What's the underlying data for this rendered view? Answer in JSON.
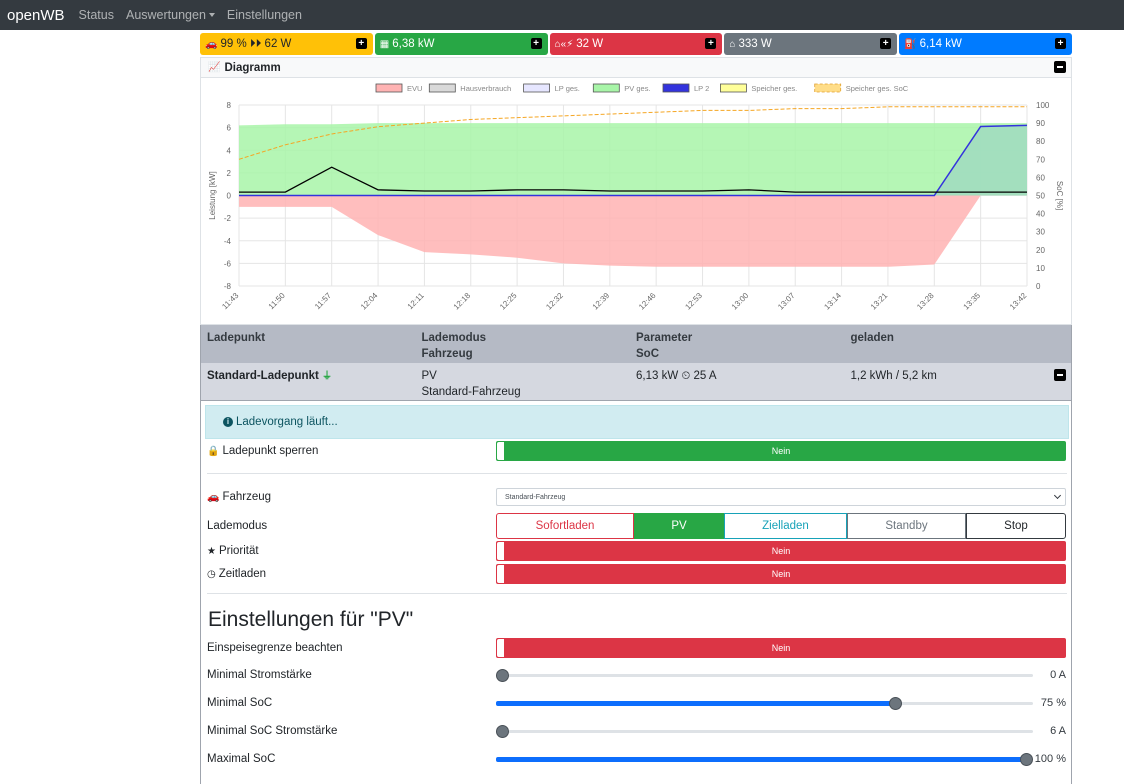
{
  "navbar": {
    "brand": "openWB",
    "links": [
      "Status",
      "Auswertungen",
      "Einstellungen"
    ]
  },
  "tiles": [
    {
      "icon": "car-icon",
      "text": "99 % ⏵⏵ 62 W"
    },
    {
      "icon": "solar-panel-icon",
      "text": "6,38 kW"
    },
    {
      "icon": "grid-icon",
      "text": "32 W"
    },
    {
      "icon": "house-icon",
      "text": "333 W"
    },
    {
      "icon": "charging-station-icon",
      "text": "6,14 kW"
    }
  ],
  "diagram": {
    "title": "Diagramm"
  },
  "chart_data": {
    "type": "area",
    "legend": [
      "EVU",
      "Hausverbrauch",
      "LP ges.",
      "PV ges.",
      "LP 2",
      "Speicher ges.",
      "Speicher ges. SoC"
    ],
    "legend_colors": [
      "#ffb3b3",
      "#d9d9d9",
      "#e6e6ff",
      "#a8f5a8",
      "#3333dd",
      "#ffff99",
      "#ffdd88"
    ],
    "legend_placement": "top",
    "ylabel": "Leistung [kW]",
    "ylabel_right": "SoC [%]",
    "ylim": [
      -8,
      8
    ],
    "yticks": [
      -8,
      -6,
      -4,
      -2,
      0,
      2,
      4,
      6,
      8
    ],
    "ylim_right": [
      0,
      100
    ],
    "yticks_right": [
      0,
      10,
      20,
      30,
      40,
      50,
      60,
      70,
      80,
      90,
      100
    ],
    "x_ticks": [
      "11:43",
      "11:50",
      "11:57",
      "12:04",
      "12:11",
      "12:18",
      "12:25",
      "12:32",
      "12:39",
      "12:46",
      "12:53",
      "13:00",
      "13:07",
      "13:14",
      "13:21",
      "13:28",
      "13:35",
      "13:42"
    ],
    "grid": true,
    "series": [
      {
        "name": "EVU",
        "color": "#ffb3b3",
        "values": [
          -1.0,
          -1.0,
          -1.0,
          -3.5,
          -5.0,
          -5.2,
          -5.5,
          -6.0,
          -6.2,
          -6.3,
          -6.3,
          -6.3,
          -6.3,
          -6.3,
          -6.3,
          -6.1,
          0.0,
          0.0
        ]
      },
      {
        "name": "PV ges.",
        "color": "#a8f5a8",
        "values": [
          6.2,
          6.3,
          6.3,
          6.4,
          6.4,
          6.4,
          6.4,
          6.4,
          6.4,
          6.4,
          6.4,
          6.4,
          6.4,
          6.4,
          6.4,
          6.4,
          6.4,
          6.4
        ]
      },
      {
        "name": "Hausverbrauch",
        "color": "#000000",
        "values": [
          0.3,
          0.3,
          2.5,
          0.5,
          0.4,
          0.4,
          0.5,
          0.5,
          0.4,
          0.4,
          0.4,
          0.5,
          0.3,
          0.3,
          0.3,
          0.3,
          0.3,
          0.3
        ]
      },
      {
        "name": "LP 2",
        "color": "#3333dd",
        "values": [
          0,
          0,
          0,
          0,
          0,
          0,
          0,
          0,
          0,
          0,
          0,
          0,
          0,
          0,
          0,
          0,
          6.1,
          6.2
        ]
      },
      {
        "name": "Speicher ges. SoC",
        "color": "#f5a623",
        "values": [
          70,
          78,
          84,
          88,
          90,
          92,
          93,
          94,
          95,
          96,
          97,
          97,
          98,
          98,
          99,
          99,
          99,
          99
        ]
      }
    ]
  },
  "table": {
    "headers": [
      {
        "line1": "Ladepunkt",
        "line2": ""
      },
      {
        "line1": "Lademodus",
        "line2": "Fahrzeug"
      },
      {
        "line1": "Parameter",
        "line2": "SoC"
      },
      {
        "line1": "geladen",
        "line2": ""
      }
    ],
    "row": {
      "ladepunkt": "Standard-Ladepunkt",
      "lademodus": "PV",
      "fahrzeug": "Standard-Fahrzeug",
      "parameter": "6,13 kW ⏲ 25 A",
      "geladen": "1,2 kWh / 5,2 km"
    }
  },
  "detail": {
    "alert": "Ladevorgang läuft...",
    "ladepunkt_sperren": {
      "label": "Ladepunkt sperren",
      "value": "Nein"
    },
    "fahrzeug": {
      "label": "Fahrzeug",
      "selected": "Standard-Fahrzeug"
    },
    "lademodus": {
      "label": "Lademodus",
      "options": [
        "Sofortladen",
        "PV",
        "Zielladen",
        "Standby",
        "Stop"
      ],
      "selected": "PV"
    },
    "prioritaet": {
      "label": "Priorität",
      "value": "Nein"
    },
    "zeitladen": {
      "label": "Zeitladen",
      "value": "Nein"
    },
    "section_title": "Einstellungen für \"PV\"",
    "einspeisegrenze": {
      "label": "Einspeisegrenze beachten",
      "value": "Nein"
    },
    "sliders": [
      {
        "label": "Minimal Stromstärke",
        "value_text": "0 A",
        "fraction": 0.0
      },
      {
        "label": "Minimal SoC",
        "value_text": "75 %",
        "fraction": 0.75
      },
      {
        "label": "Minimal SoC Stromstärke",
        "value_text": "6 A",
        "fraction": 0.0
      },
      {
        "label": "Maximal SoC",
        "value_text": "100 %",
        "fraction": 1.0
      }
    ]
  }
}
